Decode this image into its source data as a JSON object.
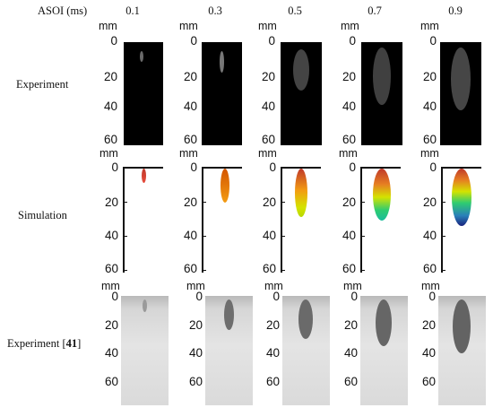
{
  "header": {
    "time_label": "ASOI (ms)",
    "times": [
      "0.1",
      "0.3",
      "0.5",
      "0.7",
      "0.9"
    ]
  },
  "unit_label": "mm",
  "rows": [
    {
      "label": "Experiment"
    },
    {
      "label": "Simulation"
    },
    {
      "label_text": "Experiment [",
      "label_ref": "41",
      "label_close": "]"
    }
  ],
  "ticks_top": [
    "0",
    "20",
    "40",
    "60"
  ],
  "ticks_bottom": [
    "0",
    "20",
    "40",
    "60"
  ]
}
